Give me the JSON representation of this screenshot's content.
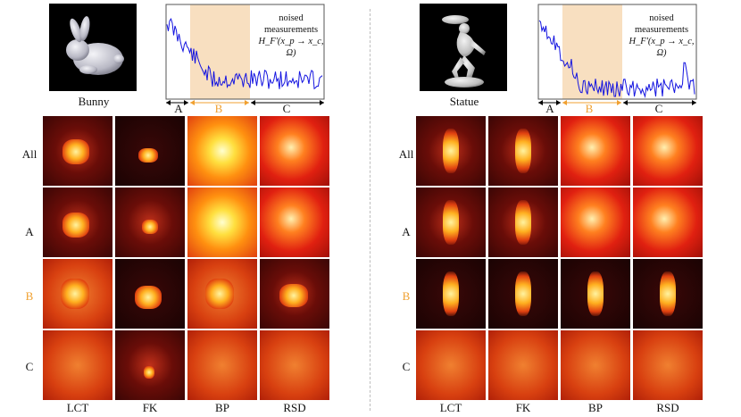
{
  "panels": [
    {
      "object_name": "Bunny",
      "legend": {
        "line1": "noised",
        "line2": "measurements",
        "line3": "H_F'(x_p → x_c, Ω)"
      },
      "segments": [
        "A",
        "B",
        "C"
      ]
    },
    {
      "object_name": "Statue",
      "legend": {
        "line1": "noised",
        "line2": "measurements",
        "line3": "H_F'(x_p → x_c, Ω)"
      },
      "segments": [
        "A",
        "B",
        "C"
      ]
    }
  ],
  "row_labels": [
    "All",
    "A",
    "B",
    "C"
  ],
  "col_labels": [
    "LCT",
    "FK",
    "BP",
    "RSD"
  ],
  "colors": {
    "highlight_row": "#f0a030",
    "band": "#f8dfc0",
    "signal": "#1414e0"
  }
}
